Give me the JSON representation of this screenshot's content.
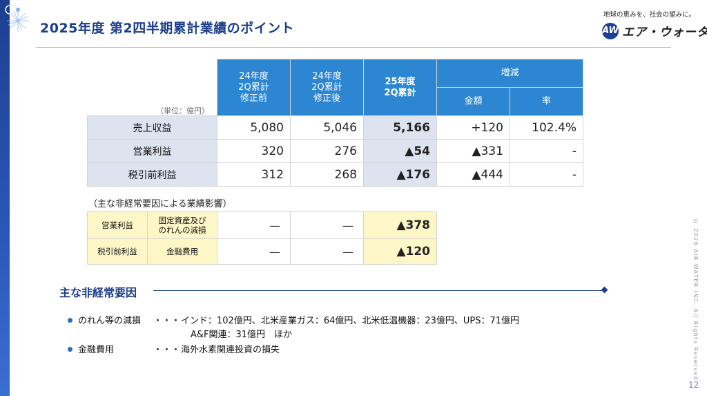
{
  "header": {
    "title": "2025年度 第2四半期累計業績のポイント",
    "slogan": "地球の恵みを、社会の望みに。",
    "logo_mark": "AW",
    "logo_text": "エア・ウォーター"
  },
  "results_table": {
    "unit": "（単位：億円）",
    "columns": {
      "prev_before": [
        "24年度",
        "2Q累計",
        "修正前"
      ],
      "prev_after": [
        "24年度",
        "2Q累計",
        "修正後"
      ],
      "current": [
        "25年度",
        "2Q累計"
      ],
      "change_group": "増減",
      "change_amount": "金額",
      "change_rate": "率"
    },
    "rows": [
      {
        "label": "売上収益",
        "prev_before": "5,080",
        "prev_after": "5,046",
        "current": "5,166",
        "change_amount": "+120",
        "change_rate": "102.4%"
      },
      {
        "label": "営業利益",
        "prev_before": "320",
        "prev_after": "276",
        "current": "▲54",
        "change_amount": "▲331",
        "change_rate": "-"
      },
      {
        "label": "税引前利益",
        "prev_before": "312",
        "prev_after": "268",
        "current": "▲176",
        "change_amount": "▲444",
        "change_rate": "-"
      }
    ]
  },
  "impact_table": {
    "caption": "（主な非経常要因による業績影響）",
    "rows": [
      {
        "metric": "営業利益",
        "factor": [
          "固定資産及び",
          "のれんの減損"
        ],
        "prev_before": "—",
        "prev_after": "—",
        "current": "▲378"
      },
      {
        "metric": "税引前利益",
        "factor": [
          "金融費用"
        ],
        "prev_before": "—",
        "prev_after": "—",
        "current": "▲120"
      }
    ]
  },
  "factors_section": {
    "title": "主な非経常要因",
    "items": [
      {
        "label": "のれん等の減損",
        "sep": "・・・",
        "lines": [
          "インド：102億円、北米産業ガス：64億円、北米低温機器：23億円、UPS：71億円",
          "A&F関連：31億円　ほか"
        ]
      },
      {
        "label": "金融費用",
        "sep": "・・・",
        "lines": [
          "海外水素関連投資の損失"
        ]
      }
    ]
  },
  "footer": {
    "copyright": "© 2026 AIR WATER INC. All Rights Reserved.",
    "page_number": "12"
  },
  "colors": {
    "header_blue": "#2d86d2",
    "navy": "#1a3d8c",
    "row_label_bg": "#dde3ef",
    "highlight_yellow": "#fdf7c8"
  }
}
